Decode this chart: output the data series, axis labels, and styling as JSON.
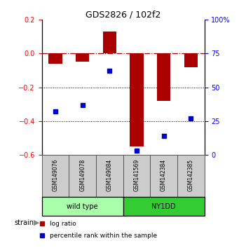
{
  "title": "GDS2826 / 102f2",
  "samples": [
    "GSM149076",
    "GSM149078",
    "GSM149084",
    "GSM141569",
    "GSM142384",
    "GSM142385"
  ],
  "log_ratio": [
    -0.06,
    -0.05,
    0.13,
    -0.55,
    -0.28,
    -0.08
  ],
  "percentile_rank": [
    32,
    37,
    62,
    3,
    14,
    27
  ],
  "ylim_left": [
    -0.6,
    0.2
  ],
  "ylim_right": [
    0,
    100
  ],
  "bar_color": "#aa0000",
  "dot_color": "#0000cc",
  "groups": [
    {
      "label": "wild type",
      "span": [
        0,
        3
      ],
      "color": "#aaffaa"
    },
    {
      "label": "NY1DD",
      "span": [
        3,
        6
      ],
      "color": "#33cc33"
    }
  ],
  "strain_label": "strain",
  "legend_items": [
    {
      "color": "#aa0000",
      "label": "log ratio"
    },
    {
      "color": "#0000cc",
      "label": "percentile rank within the sample"
    }
  ],
  "yticks_left": [
    -0.6,
    -0.4,
    -0.2,
    0.0,
    0.2
  ],
  "yticks_right": [
    0,
    25,
    50,
    75,
    100
  ],
  "dotted_lines": [
    -0.2,
    -0.4
  ],
  "background_color": "#ffffff",
  "sample_box_color": "#cccccc",
  "bar_width": 0.5
}
